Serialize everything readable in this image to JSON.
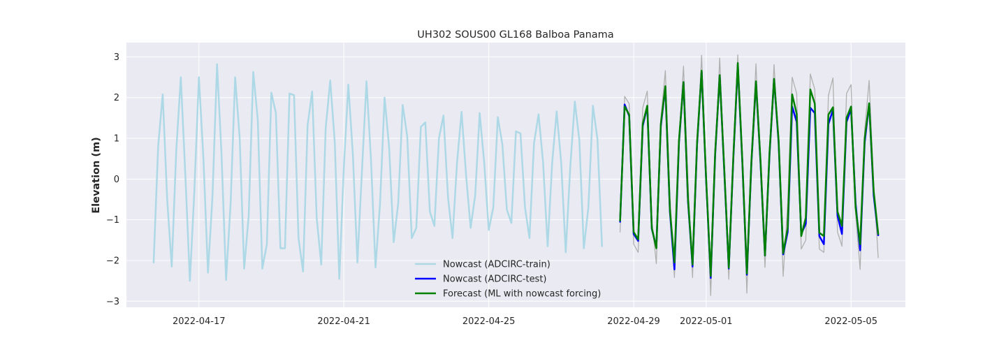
{
  "chart_data": {
    "type": "line",
    "title": "UH302 SOUS00 GL168 Balboa Panama",
    "xlabel": "",
    "ylabel": "Elevation (m)",
    "x_start": "2022-04-15T18:00",
    "x_range": [
      "2022-04-15T00:00",
      "2022-05-06T12:00"
    ],
    "ylim": [
      -3.15,
      3.35
    ],
    "x_ticks": [
      "2022-04-17",
      "2022-04-21",
      "2022-04-25",
      "2022-04-29",
      "2022-05-01",
      "2022-05-05"
    ],
    "y_ticks": [
      -3,
      -2,
      -1,
      0,
      1,
      2,
      3
    ],
    "y_tick_labels": [
      "−3",
      "−2",
      "−1",
      "0",
      "1",
      "2",
      "3"
    ],
    "grid": true,
    "legend_position": "lower-center",
    "background_color": "#eaeaf2",
    "series": [
      {
        "name": "Nowcast (ADCIRC-train)",
        "color": "#add8e6",
        "width": 2.5,
        "x_start": "2022-04-15T18:00",
        "step_hours": 3,
        "values": [
          -2.05,
          0.8,
          2.08,
          -0.5,
          -2.15,
          0.7,
          2.5,
          0.1,
          -2.5,
          -0.3,
          2.5,
          0.5,
          -2.3,
          -0.4,
          2.82,
          0.6,
          -2.48,
          -0.6,
          2.5,
          1.0,
          -2.2,
          -0.9,
          2.63,
          1.45,
          -2.2,
          -1.6,
          2.12,
          1.62,
          -1.7,
          -1.7,
          2.1,
          2.06,
          -1.45,
          -2.27,
          1.32,
          2.15,
          -0.95,
          -2.1,
          1.25,
          2.42,
          0.9,
          -2.45,
          0.3,
          2.32,
          0.6,
          -2.05,
          0.2,
          2.4,
          0.45,
          -2.17,
          -0.6,
          2.0,
          0.78,
          -1.55,
          -0.6,
          1.82,
          1.05,
          -1.45,
          -1.2,
          1.28,
          1.39,
          -0.8,
          -1.15,
          1.0,
          1.56,
          -0.45,
          -1.45,
          0.4,
          1.65,
          0.08,
          -1.2,
          -0.4,
          1.62,
          0.4,
          -1.25,
          -0.7,
          1.52,
          0.85,
          -0.75,
          -1.08,
          1.17,
          1.12,
          -0.7,
          -1.45,
          0.88,
          1.59,
          0.4,
          -1.65,
          0.4,
          1.66,
          0.4,
          -1.8,
          0.3,
          1.9,
          0.95,
          -1.7,
          -0.7,
          1.8,
          0.98,
          -1.65
        ]
      },
      {
        "name": "",
        "color": "#b0b0b0",
        "width": 1.3,
        "x_start": "2022-04-28T15:00",
        "step_hours": 3,
        "values": [
          -1.3,
          2.03,
          1.85,
          -1.6,
          -1.8,
          1.75,
          2.16,
          -1.02,
          -2.08,
          1.48,
          2.66,
          -0.4,
          -2.42,
          0.98,
          2.77,
          -0.05,
          -2.42,
          0.72,
          3.04,
          0.1,
          -2.86,
          0.48,
          2.97,
          0.28,
          -2.46,
          0.48,
          3.05,
          0.25,
          -2.8,
          0.5,
          2.83,
          0.2,
          -2.17,
          0.6,
          2.81,
          0.8,
          -2.39,
          -0.6,
          2.5,
          2.1,
          -1.72,
          -1.5,
          2.58,
          2.2,
          -1.72,
          -1.8,
          2.05,
          2.48,
          -1.3,
          -1.65,
          2.1,
          2.32,
          -0.85,
          -2.22,
          1.2,
          2.42,
          -0.1,
          -1.93
        ]
      },
      {
        "name": "Nowcast (ADCIRC-test)",
        "color": "#0000ff",
        "width": 2.5,
        "x_start": "2022-04-28T15:00",
        "step_hours": 3,
        "values": [
          -1.05,
          1.83,
          1.55,
          -1.35,
          -1.52,
          1.3,
          1.78,
          -1.22,
          -1.68,
          1.3,
          2.25,
          -0.8,
          -2.22,
          0.9,
          2.38,
          -0.55,
          -2.15,
          0.85,
          2.65,
          -0.05,
          -2.43,
          0.6,
          2.55,
          0.2,
          -2.2,
          0.5,
          2.8,
          0.4,
          -2.35,
          0.4,
          2.38,
          0.4,
          -1.88,
          0.6,
          2.45,
          0.9,
          -1.85,
          -1.3,
          1.78,
          1.4,
          -1.35,
          -1.1,
          1.75,
          1.62,
          -1.4,
          -1.6,
          1.35,
          1.7,
          -0.9,
          -1.35,
          1.4,
          1.72,
          -0.6,
          -1.75,
          0.9,
          1.85,
          -0.4,
          -1.38
        ]
      },
      {
        "name": "Forecast (ML with nowcast forcing)",
        "color": "#008000",
        "width": 2.5,
        "x_start": "2022-04-28T15:00",
        "step_hours": 3,
        "values": [
          -1.02,
          1.78,
          1.58,
          -1.3,
          -1.48,
          1.35,
          1.8,
          -1.2,
          -1.7,
          1.35,
          2.28,
          -0.75,
          -2.05,
          0.95,
          2.38,
          -0.5,
          -2.1,
          0.9,
          2.66,
          0.0,
          -2.38,
          0.65,
          2.55,
          0.25,
          -2.18,
          0.55,
          2.85,
          0.45,
          -2.32,
          0.45,
          2.4,
          0.45,
          -1.88,
          0.65,
          2.46,
          0.95,
          -1.82,
          -1.2,
          2.08,
          1.6,
          -1.4,
          -0.95,
          2.2,
          1.85,
          -1.32,
          -1.4,
          1.58,
          1.76,
          -0.8,
          -1.15,
          1.5,
          1.78,
          -0.7,
          -1.6,
          1.0,
          1.86,
          -0.3,
          -1.35
        ]
      }
    ],
    "legend": [
      {
        "label": "Nowcast (ADCIRC-train)",
        "color": "#add8e6"
      },
      {
        "label": "Nowcast (ADCIRC-test)",
        "color": "#0000ff"
      },
      {
        "label": "Forecast (ML with nowcast forcing)",
        "color": "#008000"
      }
    ]
  }
}
